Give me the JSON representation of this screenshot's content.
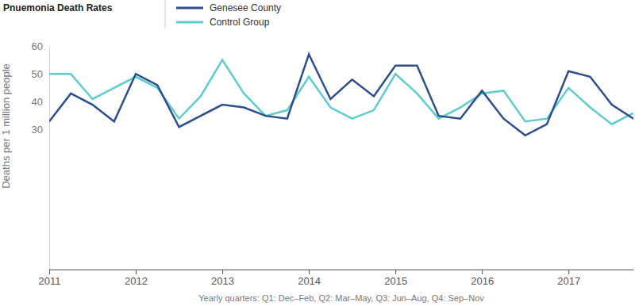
{
  "chart_data": {
    "type": "line",
    "title": "Pnuemonia Death Rates",
    "y_label": "Deaths per 1 million people",
    "x_label": "Yearly quarters: Q1: Dec–Feb, Q2: Mar–May, Q3: Jun–Aug, Q4: Sep–Nov",
    "x": [
      2011,
      2011.25,
      2011.5,
      2011.75,
      2012,
      2012.25,
      2012.5,
      2012.75,
      2013,
      2013.25,
      2013.5,
      2013.75,
      2014,
      2014.25,
      2014.5,
      2014.75,
      2015,
      2015.25,
      2015.5,
      2015.75,
      2016,
      2016.25,
      2016.5,
      2016.75,
      2017,
      2017.25,
      2017.5,
      2017.75
    ],
    "series": [
      {
        "name": "Genesee County",
        "color": "#2d4e8e",
        "values": [
          33,
          43,
          39,
          33,
          50,
          46,
          31,
          35,
          39,
          38,
          35,
          34,
          57,
          41,
          48,
          42,
          53,
          53,
          35,
          34,
          44,
          34,
          28,
          32,
          51,
          49,
          39,
          34
        ]
      },
      {
        "name": "Control Group",
        "color": "#5ecccc",
        "values": [
          50,
          50,
          41,
          45,
          49,
          45,
          34,
          42,
          55,
          43,
          35,
          37,
          49,
          38,
          34,
          37,
          50,
          43,
          34,
          38,
          43,
          44,
          33,
          34,
          45,
          38,
          32,
          36
        ]
      }
    ],
    "xlim": [
      2011,
      2017.75
    ],
    "xticks": [
      2011,
      2012,
      2013,
      2014,
      2015,
      2016,
      2017
    ],
    "ylim": [
      -20,
      60
    ],
    "yticks": [
      30,
      40,
      50,
      60
    ],
    "grid": false,
    "legend": "top"
  }
}
